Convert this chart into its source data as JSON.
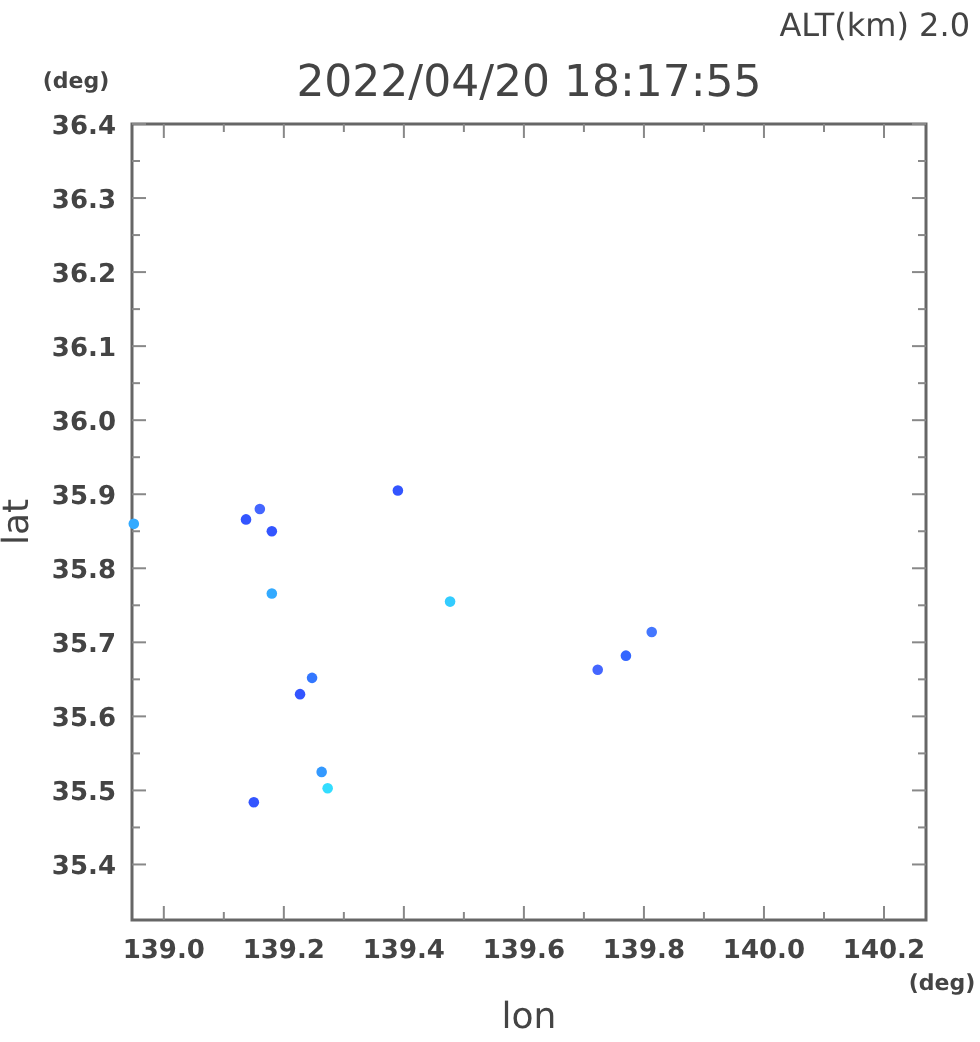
{
  "chart_data": {
    "type": "scatter",
    "title": "2022/04/20 18:17:55",
    "xlabel": "lon",
    "ylabel": "lat",
    "annotations": [
      "ALT(km) 2.0",
      "(deg)",
      "(deg)"
    ],
    "xlim": [
      138.947,
      140.27
    ],
    "ylim": [
      35.325,
      36.4
    ],
    "xticks": [
      {
        "value": 139.0,
        "label": "139.0"
      },
      {
        "value": 139.1,
        "label": null
      },
      139.2,
      {
        "value": 139.3,
        "label": null
      },
      139.4,
      {
        "value": 139.5,
        "label": null
      },
      139.6,
      {
        "value": 139.7,
        "label": null
      },
      139.8,
      {
        "value": 139.9,
        "label": null
      },
      {
        "value": 140.0,
        "label": "140.0"
      },
      {
        "value": 140.1,
        "label": null
      },
      140.2
    ],
    "yticks": [
      35.4,
      {
        "value": 35.45,
        "label": null
      },
      35.5,
      {
        "value": 35.55,
        "label": null
      },
      35.6,
      {
        "value": 35.65,
        "label": null
      },
      35.7,
      {
        "value": 35.75,
        "label": null
      },
      35.8,
      {
        "value": 35.85,
        "label": null
      },
      35.9,
      {
        "value": 35.95,
        "label": null
      },
      {
        "value": 36.0,
        "label": "36.0"
      },
      {
        "value": 36.05,
        "label": null
      },
      36.1,
      {
        "value": 36.15,
        "label": null
      },
      36.2,
      {
        "value": 36.25,
        "label": null
      },
      36.3,
      {
        "value": 36.35,
        "label": null
      },
      36.4
    ],
    "marker": "circle",
    "series": [
      {
        "x": [
          138.95,
          139.137,
          139.16,
          139.18,
          139.39,
          139.18,
          139.477,
          139.247,
          139.227,
          139.263,
          139.273,
          139.15,
          139.723,
          139.77,
          139.813
        ],
        "values": [
          35.86,
          35.866,
          35.88,
          35.85,
          35.905,
          35.766,
          35.755,
          35.652,
          35.63,
          35.525,
          35.503,
          35.484,
          35.663,
          35.682,
          35.714
        ],
        "colors": [
          "#33aaff",
          "#3355ff",
          "#4466ff",
          "#3355ff",
          "#3355ff",
          "#33aaff",
          "#33ccff",
          "#3377ff",
          "#3355ff",
          "#3399ff",
          "#33ddff",
          "#3355ff",
          "#4466ff",
          "#3366ff",
          "#4477ff"
        ]
      }
    ]
  }
}
